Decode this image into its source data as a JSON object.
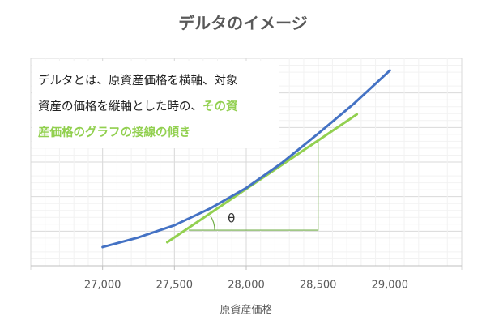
{
  "chart_data": {
    "type": "line",
    "title": "デルタのイメージ",
    "x_label": "原資産価格",
    "xlim": [
      26500,
      29500
    ],
    "ylim": [
      0,
      6
    ],
    "xticks": [
      {
        "value": 27000,
        "label": "27,000"
      },
      {
        "value": 27500,
        "label": "27,500"
      },
      {
        "value": 28000,
        "label": "28,000"
      },
      {
        "value": 28500,
        "label": "28,500"
      },
      {
        "value": 29000,
        "label": "29,000"
      }
    ],
    "grid": true,
    "series": [
      {
        "color": "#4472c4",
        "x": [
          27000,
          27250,
          27500,
          27750,
          28000,
          28250,
          28500,
          28750,
          29000
        ],
        "values": [
          0.54,
          0.82,
          1.17,
          1.66,
          2.25,
          2.98,
          3.82,
          4.69,
          5.65
        ]
      },
      {
        "color": "#92d050",
        "x": [
          27450,
          28770
        ],
        "values": [
          0.68,
          4.38
        ]
      }
    ],
    "triangle": {
      "color": "#70ad47",
      "x": [
        27600,
        28500,
        28500
      ],
      "values": [
        1.03,
        1.03,
        3.66
      ]
    },
    "angle_label": "θ",
    "annotation": {
      "highlight_color": "#92d050",
      "lines": [
        [
          {
            "text": "デルタとは、原資産価格を横軸、対象",
            "highlight": false
          }
        ],
        [
          {
            "text": "資産の価格を縦軸とした時の、",
            "highlight": false
          },
          {
            "text": "その資",
            "highlight": true
          }
        ],
        [
          {
            "text": "産価格のグラフの接線の傾き",
            "highlight": true
          }
        ]
      ]
    }
  }
}
